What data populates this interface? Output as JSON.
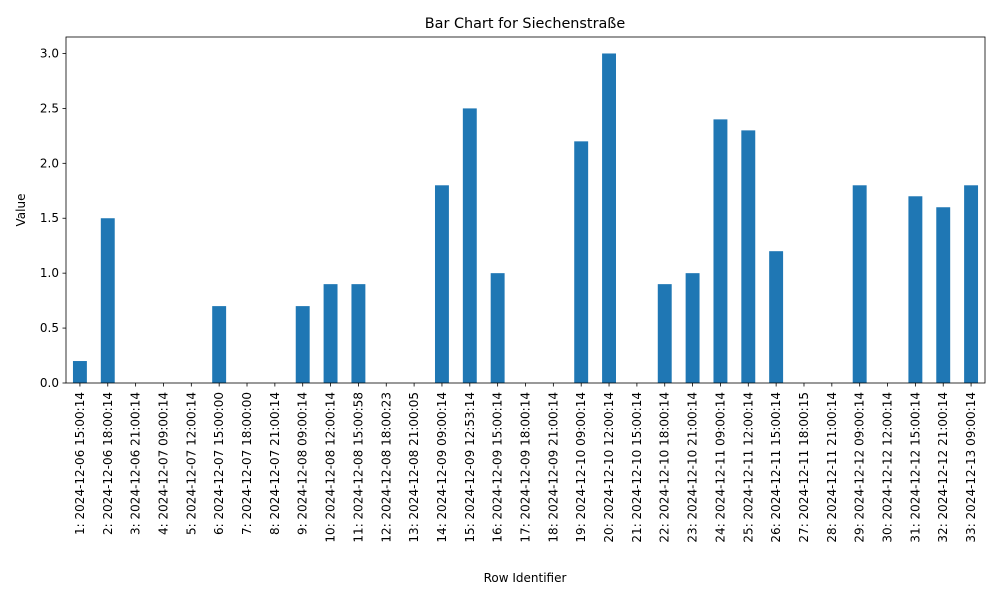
{
  "chart_data": {
    "type": "bar",
    "title": "Bar Chart for Siechenstraße",
    "xlabel": "Row Identifier",
    "ylabel": "Value",
    "ylim": [
      0,
      3.15
    ],
    "yticks": [
      "0.0",
      "0.5",
      "1.0",
      "1.5",
      "2.0",
      "2.5",
      "3.0"
    ],
    "bar_color": "#1f77b4",
    "grid": false,
    "categories": [
      "1: 2024-12-06 15:00:14",
      "2: 2024-12-06 18:00:14",
      "3: 2024-12-06 21:00:14",
      "4: 2024-12-07 09:00:14",
      "5: 2024-12-07 12:00:14",
      "6: 2024-12-07 15:00:00",
      "7: 2024-12-07 18:00:00",
      "8: 2024-12-07 21:00:14",
      "9: 2024-12-08 09:00:14",
      "10: 2024-12-08 12:00:14",
      "11: 2024-12-08 15:00:58",
      "12: 2024-12-08 18:00:23",
      "13: 2024-12-08 21:00:05",
      "14: 2024-12-09 09:00:14",
      "15: 2024-12-09 12:53:14",
      "16: 2024-12-09 15:00:14",
      "17: 2024-12-09 18:00:14",
      "18: 2024-12-09 21:00:14",
      "19: 2024-12-10 09:00:14",
      "20: 2024-12-10 12:00:14",
      "21: 2024-12-10 15:00:14",
      "22: 2024-12-10 18:00:14",
      "23: 2024-12-10 21:00:14",
      "24: 2024-12-11 09:00:14",
      "25: 2024-12-11 12:00:14",
      "26: 2024-12-11 15:00:14",
      "27: 2024-12-11 18:00:15",
      "28: 2024-12-11 21:00:14",
      "29: 2024-12-12 09:00:14",
      "30: 2024-12-12 12:00:14",
      "31: 2024-12-12 15:00:14",
      "32: 2024-12-12 21:00:14",
      "33: 2024-12-13 09:00:14"
    ],
    "values": [
      0.2,
      1.5,
      0,
      0,
      0,
      0.7,
      0,
      0,
      0.7,
      0.9,
      0.9,
      0,
      0,
      1.8,
      2.5,
      1.0,
      0,
      0,
      2.2,
      3.0,
      0,
      0.9,
      1.0,
      2.4,
      2.3,
      1.2,
      0,
      0,
      1.8,
      0,
      1.7,
      1.6,
      1.8
    ]
  }
}
